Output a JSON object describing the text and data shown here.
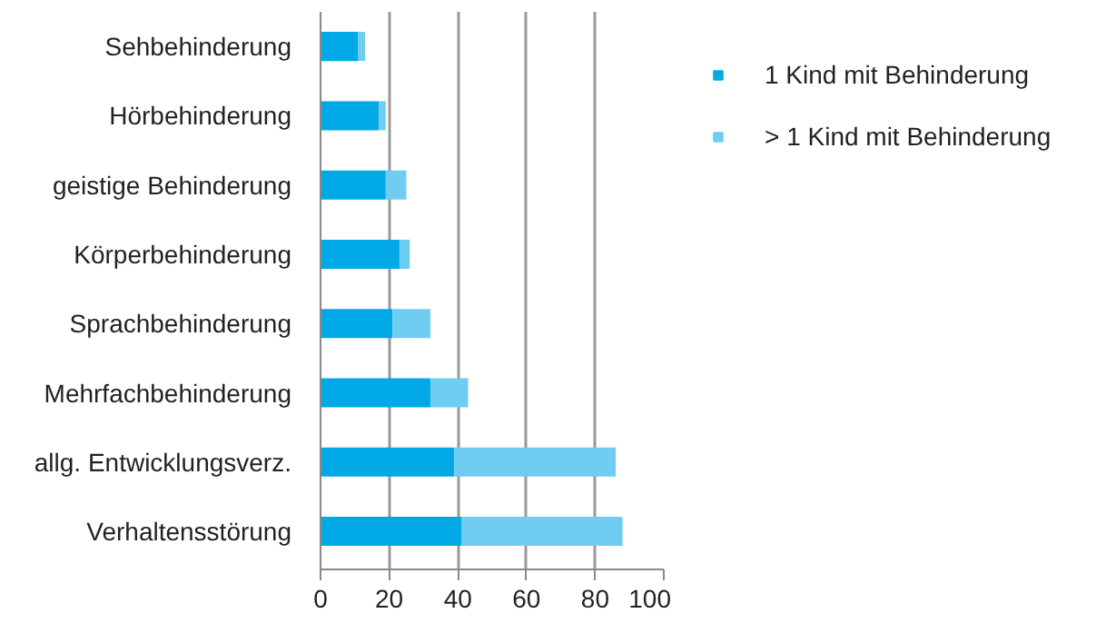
{
  "chart_data": {
    "type": "bar",
    "orientation": "horizontal",
    "stacked": true,
    "categories": [
      "Sehbehinderung",
      "Hörbehinderung",
      "geistige Behinderung",
      "Körperbehinderung",
      "Sprachbehinderung",
      "Mehrfachbehinderung",
      "allg. Entwicklungsverz.",
      "Verhaltensstörung"
    ],
    "series": [
      {
        "name": "1 Kind mit Behinderung",
        "color": "#00a9e6",
        "values": [
          11,
          17,
          19,
          23,
          21,
          32,
          39,
          41
        ]
      },
      {
        "name": "> 1 Kind mit Behinderung",
        "color": "#70cdf2",
        "values": [
          2,
          2,
          6,
          3,
          11,
          11,
          47,
          47
        ]
      }
    ],
    "xlim": [
      0,
      100
    ],
    "xticks": [
      0,
      20,
      40,
      60,
      80,
      100
    ],
    "grid": "x",
    "legend": "right"
  }
}
